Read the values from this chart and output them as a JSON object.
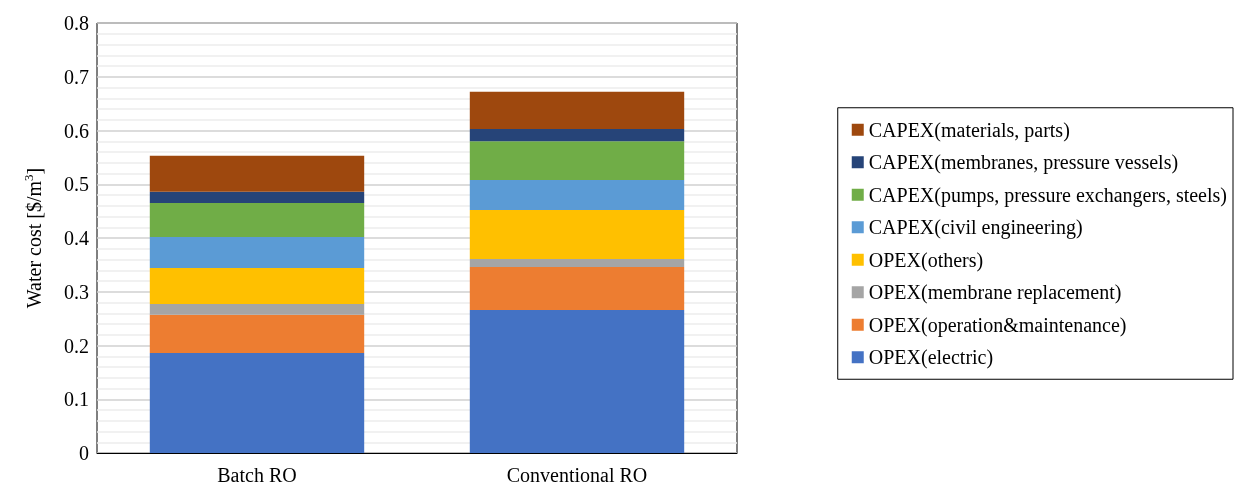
{
  "chart_data": {
    "type": "bar",
    "stacked": true,
    "categories": [
      "Batch RO",
      "Conventional RO"
    ],
    "ylabel": "Water cost [$/m$^{3}$]",
    "ylim": [
      0,
      0.8
    ],
    "yticks": [
      0,
      0.1,
      0.2,
      0.3,
      0.4,
      0.5,
      0.6,
      0.7,
      0.8
    ],
    "grid": "y",
    "legend": "right",
    "series": [
      {
        "name": "OPEX(electric)",
        "color": "#4472c4",
        "values": [
          0.186,
          0.266
        ]
      },
      {
        "name": "OPEX(operation&maintenance)",
        "color": "#ed7d31",
        "values": [
          0.071,
          0.08
        ]
      },
      {
        "name": "OPEX(membrane replacement)",
        "color": "#a5a5a5",
        "values": [
          0.02,
          0.015
        ]
      },
      {
        "name": "OPEX(others)",
        "color": "#ffc000",
        "values": [
          0.067,
          0.091
        ]
      },
      {
        "name": "CAPEX(civil engineering)",
        "color": "#5b9bd5",
        "values": [
          0.058,
          0.056
        ]
      },
      {
        "name": "CAPEX(pumps, pressure exchangers, steels)",
        "color": "#70ad47",
        "values": [
          0.063,
          0.072
        ]
      },
      {
        "name": "CAPEX(membranes, pressure vessels)",
        "color": "#264478",
        "values": [
          0.021,
          0.023
        ]
      },
      {
        "name": "CAPEX(materials, parts)",
        "color": "#9e480e",
        "values": [
          0.067,
          0.069
        ]
      }
    ]
  }
}
